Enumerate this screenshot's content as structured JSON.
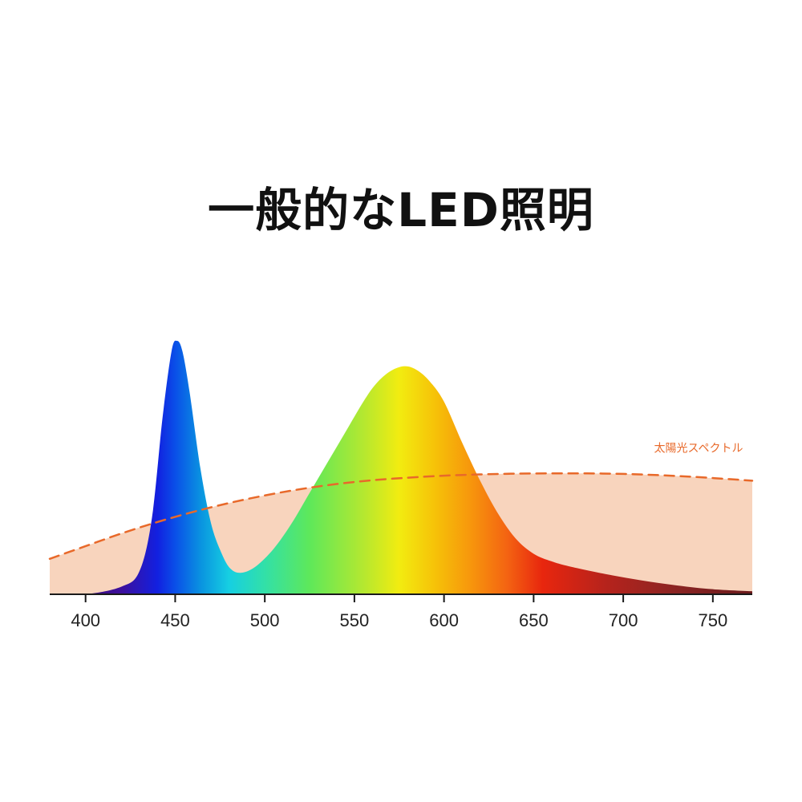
{
  "title": "一般的なLED照明",
  "chart_data": {
    "type": "area",
    "title": "一般的なLED照明",
    "xlabel": "",
    "ylabel": "",
    "xlim": [
      380,
      772
    ],
    "ylim": [
      0,
      1
    ],
    "x_ticks": [
      400,
      450,
      500,
      550,
      600,
      650,
      700,
      750
    ],
    "grid": false,
    "series": [
      {
        "name": "",
        "fill": "visible-spectrum-gradient",
        "x": [
          380,
          400,
          420,
          430,
          437,
          443,
          448,
          451,
          454,
          458,
          464,
          470,
          476,
          481,
          487,
          495,
          505,
          515,
          525,
          535,
          545,
          555,
          562,
          570,
          578,
          585,
          592,
          600,
          610,
          620,
          630,
          640,
          650,
          660,
          670,
          690,
          710,
          730,
          750,
          772
        ],
        "y": [
          0.0,
          0.0,
          0.03,
          0.09,
          0.3,
          0.7,
          0.96,
          1.0,
          0.96,
          0.8,
          0.5,
          0.28,
          0.16,
          0.1,
          0.085,
          0.11,
          0.18,
          0.28,
          0.4,
          0.52,
          0.64,
          0.76,
          0.83,
          0.88,
          0.9,
          0.884,
          0.84,
          0.76,
          0.6,
          0.45,
          0.32,
          0.22,
          0.16,
          0.13,
          0.11,
          0.08,
          0.055,
          0.035,
          0.02,
          0.012
        ]
      },
      {
        "name": "太陽光スペクトル",
        "color": "#e8692a",
        "fill_color": "#f8d4bd",
        "style": "dashed",
        "x": [
          380,
          400,
          420,
          440,
          460,
          480,
          500,
          520,
          540,
          560,
          580,
          600,
          620,
          640,
          660,
          680,
          700,
          720,
          740,
          760,
          772
        ],
        "y": [
          0.14,
          0.19,
          0.24,
          0.285,
          0.325,
          0.36,
          0.39,
          0.415,
          0.435,
          0.45,
          0.46,
          0.468,
          0.473,
          0.476,
          0.477,
          0.477,
          0.475,
          0.47,
          0.463,
          0.454,
          0.448
        ]
      }
    ],
    "spectrum_colors": [
      {
        "nm": 380,
        "color": "#3a0a5e"
      },
      {
        "nm": 420,
        "color": "#3d0f9c"
      },
      {
        "nm": 440,
        "color": "#1220e0"
      },
      {
        "nm": 450,
        "color": "#0a4fe8"
      },
      {
        "nm": 465,
        "color": "#0a96e0"
      },
      {
        "nm": 480,
        "color": "#16cfe2"
      },
      {
        "nm": 500,
        "color": "#32e0a8"
      },
      {
        "nm": 525,
        "color": "#5ee85a"
      },
      {
        "nm": 555,
        "color": "#b4e830"
      },
      {
        "nm": 575,
        "color": "#f2ec10"
      },
      {
        "nm": 595,
        "color": "#f6c208"
      },
      {
        "nm": 615,
        "color": "#f7960c"
      },
      {
        "nm": 635,
        "color": "#f46412"
      },
      {
        "nm": 655,
        "color": "#e8260e"
      },
      {
        "nm": 690,
        "color": "#b6231c"
      },
      {
        "nm": 730,
        "color": "#8a2423"
      },
      {
        "nm": 772,
        "color": "#6b1a1c"
      }
    ],
    "annotations": [
      {
        "text": "太陽光スペクトル",
        "x": 740,
        "y": 0.6,
        "color": "#e8692a"
      }
    ]
  }
}
